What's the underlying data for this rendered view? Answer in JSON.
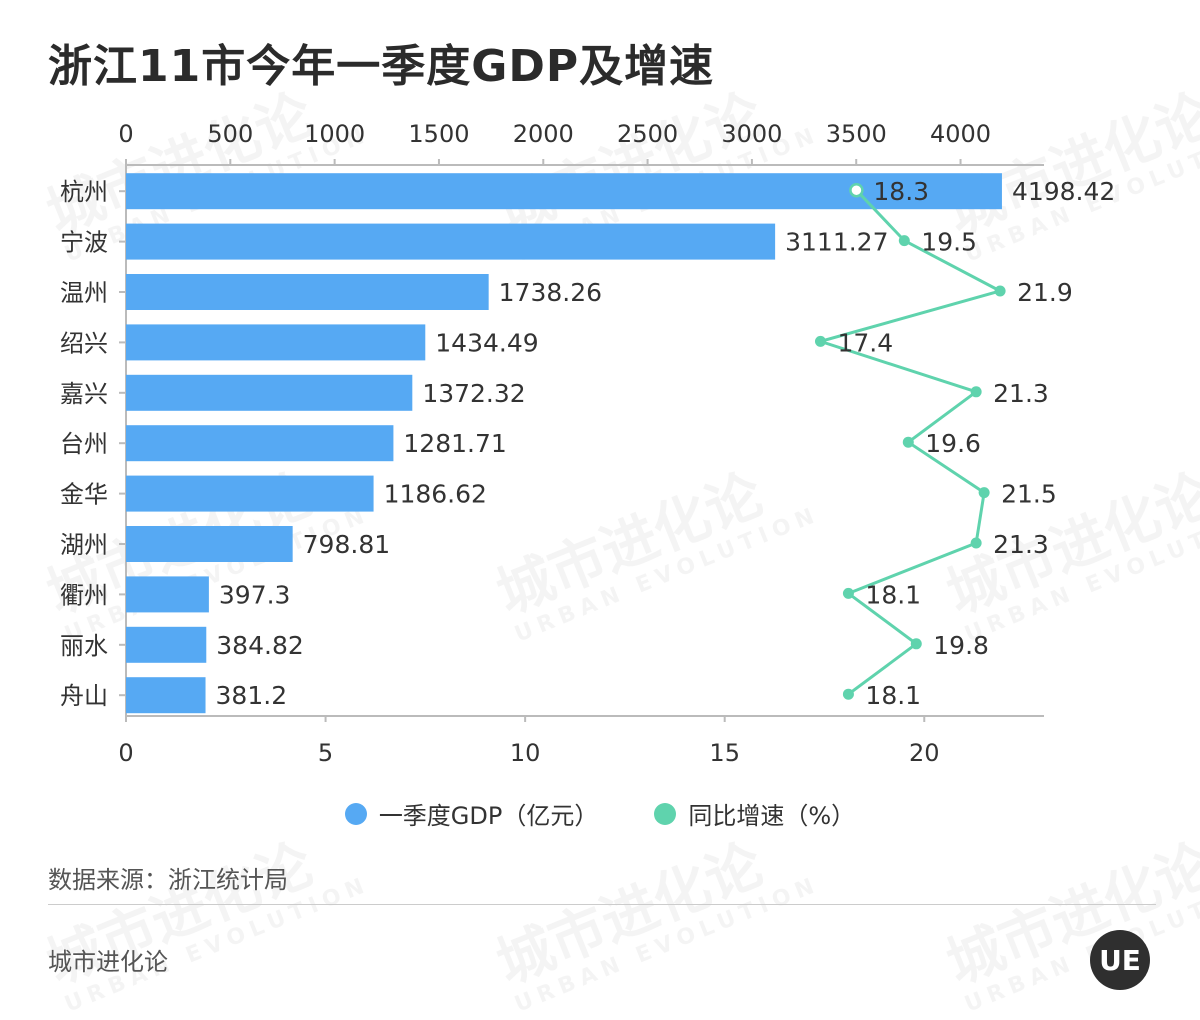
{
  "title": "浙江11市今年一季度GDP及增速",
  "source": "数据来源：浙江统计局",
  "brand": "城市进化论",
  "logo_text": "UE",
  "watermark": {
    "cn": "城市进化论",
    "en": "URBAN EVOLUTION"
  },
  "colors": {
    "bar": "#56a9f3",
    "line": "#5fd3ad",
    "axis": "#bbbbbb"
  },
  "chart_data": {
    "type": "bar",
    "orientation": "horizontal",
    "categories": [
      "杭州",
      "宁波",
      "温州",
      "绍兴",
      "嘉兴",
      "台州",
      "金华",
      "湖州",
      "衢州",
      "丽水",
      "舟山"
    ],
    "series": [
      {
        "name": "一季度GDP（亿元）",
        "type": "bar",
        "axis": "top",
        "values": [
          4198.42,
          3111.27,
          1738.26,
          1434.49,
          1372.32,
          1281.71,
          1186.62,
          798.81,
          397.3,
          384.82,
          381.2
        ],
        "labels": [
          "4198.42",
          "3111.27",
          "1738.26",
          "1434.49",
          "1372.32",
          "1281.71",
          "1186.62",
          "798.81",
          "397.3",
          "384.82",
          "381.2"
        ]
      },
      {
        "name": "同比增速（%）",
        "type": "line",
        "axis": "bottom",
        "values": [
          18.3,
          19.5,
          21.9,
          17.4,
          21.3,
          19.6,
          21.5,
          21.3,
          18.1,
          19.8,
          18.1
        ],
        "labels": [
          "18.3",
          "19.5",
          "21.9",
          "17.4",
          "21.3",
          "19.6",
          "21.5",
          "21.3",
          "18.1",
          "19.8",
          "18.1"
        ]
      }
    ],
    "top_axis": {
      "range": [
        0,
        4400
      ],
      "ticks": [
        "0",
        "500",
        "1000",
        "1500",
        "2000",
        "2500",
        "3000",
        "3500",
        "4000"
      ]
    },
    "bottom_axis": {
      "range": [
        0,
        23
      ],
      "ticks": [
        "0",
        "5",
        "10",
        "15",
        "20"
      ]
    },
    "legend_position": "bottom"
  }
}
